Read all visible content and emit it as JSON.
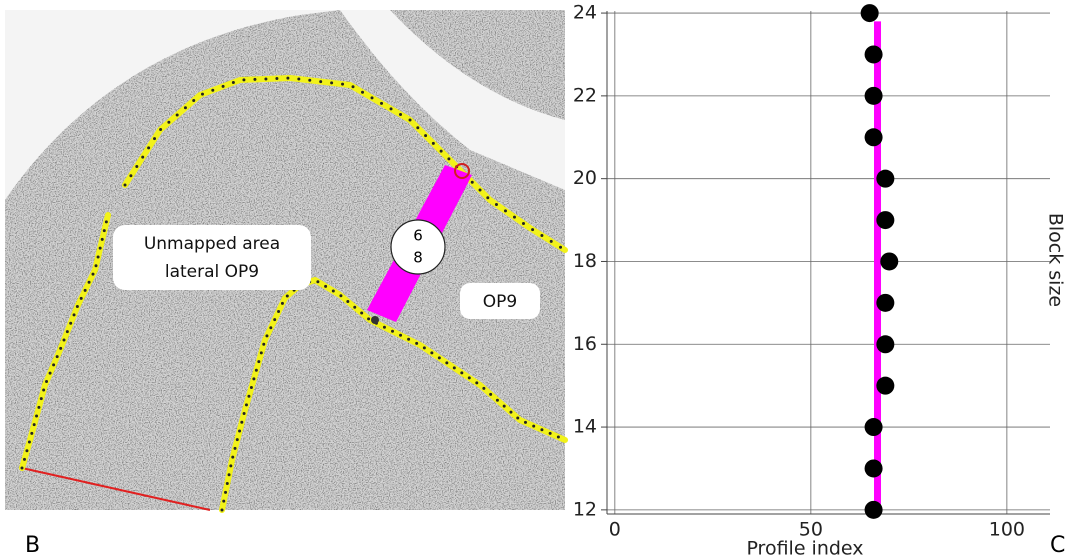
{
  "panel_labels": [
    "B",
    "C"
  ],
  "image_annotations": {
    "region_label": [
      "Unmapped area",
      "lateral OP9"
    ],
    "area_label": "OP9",
    "circle_label": [
      "6",
      "8"
    ]
  },
  "chart_data": {
    "type": "scatter",
    "x_label": "Profile index",
    "y_label": "Block size",
    "x": [
      65,
      66,
      66,
      66,
      69,
      69,
      70,
      69,
      69,
      69,
      66,
      66,
      66
    ],
    "y": [
      24,
      23,
      22,
      21,
      20,
      19,
      18,
      17,
      16,
      15,
      14,
      13,
      12
    ],
    "color": "#000000",
    "line": {
      "x": [
        67,
        67
      ],
      "y": [
        12,
        23.8
      ],
      "color": "#ff00ff"
    },
    "xlim": [
      -2,
      111
    ],
    "ylim": [
      11.9,
      24.05
    ],
    "xticks": [
      0,
      50,
      100
    ],
    "yticks": [
      12,
      14,
      16,
      18,
      20,
      22,
      24
    ],
    "grid": true
  }
}
